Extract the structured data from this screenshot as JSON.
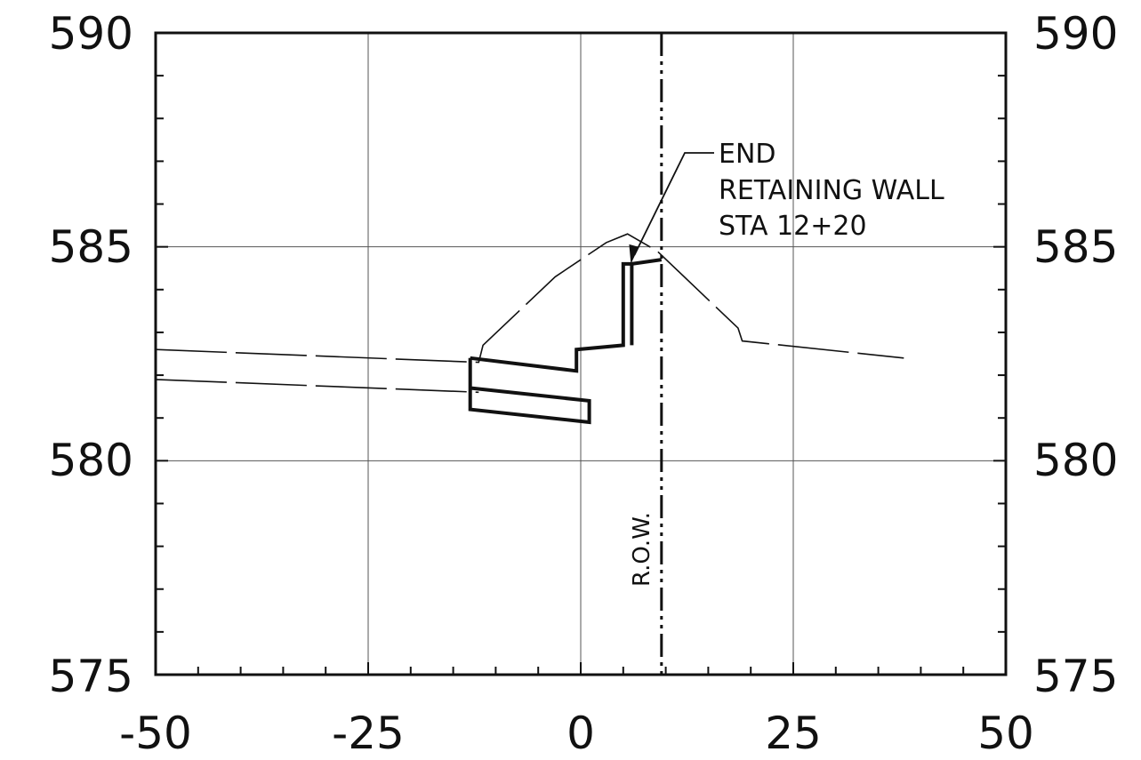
{
  "chart_data": {
    "type": "line",
    "title": "",
    "xlabel": "",
    "ylabel": "",
    "xlim": [
      -50,
      50
    ],
    "ylim": [
      575,
      590
    ],
    "x_ticks": [
      "-50",
      "-25",
      "0",
      "25",
      "50"
    ],
    "y_ticks": [
      "575",
      "580",
      "585",
      "590"
    ],
    "grid": true,
    "series": [
      {
        "style": "thin-dashed",
        "points": [
          [
            -50,
            582.6
          ],
          [
            -12,
            582.3
          ],
          [
            -11.5,
            582.7
          ],
          [
            -3,
            584.3
          ],
          [
            3,
            585.1
          ],
          [
            5.5,
            585.3
          ],
          [
            9,
            584.9
          ],
          [
            18.5,
            583.1
          ],
          [
            19,
            582.8
          ],
          [
            38,
            582.4
          ]
        ]
      },
      {
        "style": "thin-dashed",
        "points": [
          [
            -50,
            581.9
          ],
          [
            -12,
            581.6
          ]
        ]
      },
      {
        "style": "heavy",
        "points": [
          [
            -13,
            582.4
          ],
          [
            -13,
            581.2
          ],
          [
            1,
            580.9
          ],
          [
            1,
            581.4
          ],
          [
            -13,
            581.7
          ]
        ]
      },
      {
        "style": "heavy",
        "points": [
          [
            -13,
            582.4
          ],
          [
            -0.5,
            582.1
          ],
          [
            -0.5,
            582.6
          ],
          [
            5,
            582.7
          ],
          [
            5,
            584.6
          ],
          [
            6,
            584.6
          ],
          [
            6,
            582.7
          ]
        ]
      },
      {
        "style": "heavy",
        "points": [
          [
            6,
            584.6
          ],
          [
            9.5,
            584.7
          ]
        ]
      }
    ],
    "row_line_x": 9.5,
    "annotations": [
      {
        "lines": [
          "END",
          "RETAINING WALL",
          "STA 12+20"
        ],
        "points_to": [
          5.9,
          584.6
        ]
      },
      {
        "text": "R.O.W."
      }
    ]
  }
}
